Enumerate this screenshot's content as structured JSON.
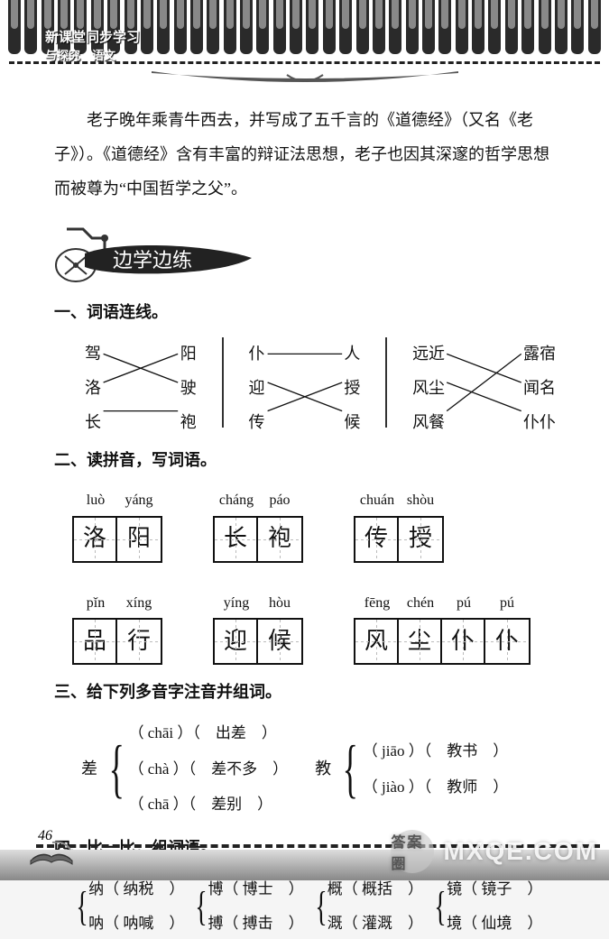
{
  "header": {
    "series_line1": "新课堂同步学习",
    "series_line2": "与探究　语文"
  },
  "intro": {
    "text": "老子晚年乘青牛西去，并写成了五千言的《道德经》（又名《老子》）。《道德经》含有丰富的辩证法思想，老子也因其深邃的哲学思想而被尊为“中国哲学之父”。"
  },
  "banner_text": "边学边练",
  "sections": [
    {
      "title": "一、词语连线。",
      "groups": [
        {
          "left": [
            "驾",
            "洛",
            "长"
          ],
          "right": [
            "阳",
            "驶",
            "袍"
          ],
          "lines": [
            [
              0,
              1
            ],
            [
              1,
              0
            ],
            [
              2,
              2
            ]
          ]
        },
        {
          "left": [
            "仆",
            "迎",
            "传"
          ],
          "right": [
            "人",
            "授",
            "候"
          ],
          "lines": [
            [
              0,
              0
            ],
            [
              1,
              2
            ],
            [
              2,
              1
            ]
          ]
        },
        {
          "left": [
            "远近",
            "风尘",
            "风餐"
          ],
          "right": [
            "露宿",
            "闻名",
            "仆仆"
          ],
          "lines": [
            [
              0,
              1
            ],
            [
              1,
              2
            ],
            [
              2,
              0
            ]
          ],
          "wide": true
        }
      ]
    },
    {
      "title": "二、读拼音，写词语。",
      "items": [
        {
          "pinyin": [
            "luò",
            "yáng"
          ],
          "chars": [
            "洛",
            "阳"
          ]
        },
        {
          "pinyin": [
            "cháng",
            "páo"
          ],
          "chars": [
            "长",
            "袍"
          ]
        },
        {
          "pinyin": [
            "chuán",
            "shòu"
          ],
          "chars": [
            "传",
            "授"
          ]
        },
        {
          "pinyin": [
            "pǐn",
            "xíng"
          ],
          "chars": [
            "品",
            "行"
          ]
        },
        {
          "pinyin": [
            "yíng",
            "hòu"
          ],
          "chars": [
            "迎",
            "候"
          ]
        },
        {
          "pinyin": [
            "fēng",
            "chén",
            "pú",
            "pú"
          ],
          "chars": [
            "风",
            "尘",
            "仆",
            "仆"
          ]
        }
      ]
    },
    {
      "title": "三、给下列多音字注音并组词。",
      "items": [
        {
          "char": "差",
          "readings": [
            {
              "py": "chāi",
              "word": "出差"
            },
            {
              "py": "chà",
              "word": "差不多"
            },
            {
              "py": "chā",
              "word": "差别"
            }
          ]
        },
        {
          "char": "教",
          "readings": [
            {
              "py": "jiāo",
              "word": "教书"
            },
            {
              "py": "jiào",
              "word": "教师"
            }
          ]
        }
      ]
    },
    {
      "title": "四、比一比，组词语。",
      "pairs": [
        {
          "a": [
            "纳",
            "纳税"
          ],
          "b": [
            "呐",
            "呐喊"
          ]
        },
        {
          "a": [
            "博",
            "博士"
          ],
          "b": [
            "搏",
            "搏击"
          ]
        },
        {
          "a": [
            "概",
            "概括"
          ],
          "b": [
            "溉",
            "灌溉"
          ]
        },
        {
          "a": [
            "镜",
            "镜子"
          ],
          "b": [
            "境",
            "仙境"
          ]
        }
      ]
    }
  ],
  "footer": {
    "page": "46"
  },
  "watermark": {
    "circle": "答案圈",
    "text": "MXQE.COM"
  },
  "colors": {
    "text": "#111111",
    "line": "#222222",
    "box_border": "#111111",
    "guide": "#bbbbbb"
  }
}
